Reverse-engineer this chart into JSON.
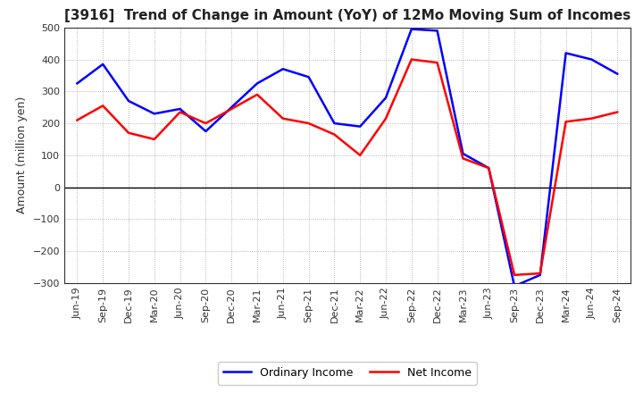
{
  "title": "[3916]  Trend of Change in Amount (YoY) of 12Mo Moving Sum of Incomes",
  "ylabel": "Amount (million yen)",
  "x_labels": [
    "Jun-19",
    "Sep-19",
    "Dec-19",
    "Mar-20",
    "Jun-20",
    "Sep-20",
    "Dec-20",
    "Mar-21",
    "Jun-21",
    "Sep-21",
    "Dec-21",
    "Mar-22",
    "Jun-22",
    "Sep-22",
    "Dec-22",
    "Mar-23",
    "Jun-23",
    "Sep-23",
    "Dec-23",
    "Mar-24",
    "Jun-24",
    "Sep-24"
  ],
  "ordinary_income": [
    325,
    385,
    270,
    230,
    245,
    175,
    250,
    325,
    370,
    345,
    200,
    190,
    280,
    495,
    490,
    105,
    60,
    -310,
    -275,
    420,
    400,
    355
  ],
  "net_income": [
    210,
    255,
    170,
    150,
    235,
    200,
    245,
    290,
    215,
    200,
    165,
    100,
    215,
    400,
    390,
    90,
    60,
    -275,
    -270,
    205,
    215,
    235
  ],
  "ordinary_color": "#0000ff",
  "net_color": "#ff0000",
  "ylim": [
    -300,
    500
  ],
  "yticks": [
    -300,
    -200,
    -100,
    0,
    100,
    200,
    300,
    400,
    500
  ],
  "background_color": "#ffffff",
  "grid_color": "#999999",
  "legend_labels": [
    "Ordinary Income",
    "Net Income"
  ],
  "line_width": 1.8,
  "title_fontsize": 11,
  "tick_fontsize": 8,
  "ylabel_fontsize": 9
}
